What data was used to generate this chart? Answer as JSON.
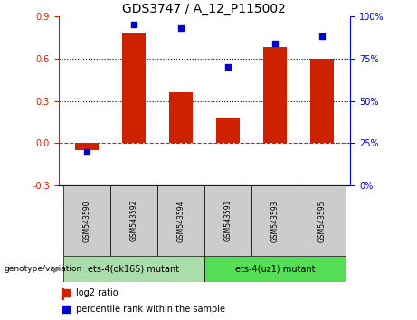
{
  "title": "GDS3747 / A_12_P115002",
  "categories": [
    "GSM543590",
    "GSM543592",
    "GSM543594",
    "GSM543591",
    "GSM543593",
    "GSM543595"
  ],
  "log2_ratio": [
    -0.05,
    0.78,
    0.36,
    0.18,
    0.68,
    0.6
  ],
  "percentile_rank": [
    20,
    95,
    93,
    70,
    84,
    88
  ],
  "bar_color": "#cc2200",
  "scatter_color": "#0000cc",
  "ylim_left": [
    -0.3,
    0.9
  ],
  "ylim_right": [
    0,
    100
  ],
  "yticks_left": [
    -0.3,
    0.0,
    0.3,
    0.6,
    0.9
  ],
  "yticks_right": [
    0,
    25,
    50,
    75,
    100
  ],
  "hline_y": 0.0,
  "dotted_lines": [
    0.3,
    0.6
  ],
  "group1_label": "ets-4(ok165) mutant",
  "group2_label": "ets-4(uz1) mutant",
  "group1_indices": [
    0,
    1,
    2
  ],
  "group2_indices": [
    3,
    4,
    5
  ],
  "group1_color": "#aaddaa",
  "group2_color": "#55dd55",
  "genotype_label": "genotype/variation",
  "legend_bar_label": "log2 ratio",
  "legend_scatter_label": "percentile rank within the sample",
  "tick_area_color": "#cccccc",
  "title_fontsize": 10,
  "bar_width": 0.5
}
